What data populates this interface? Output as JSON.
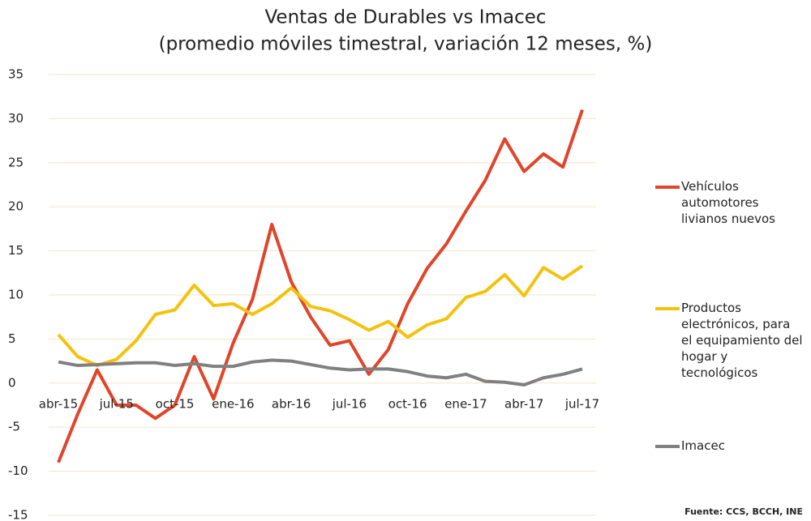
{
  "chart_data": {
    "type": "line",
    "title": "Ventas de Durables vs Imacec",
    "subtitle": "(promedio móviles timestral, variación 12 meses, %)",
    "source": "Fuente: CCS, BCCH, INE",
    "categories": [
      "abr-15",
      null,
      null,
      "jul-15",
      null,
      null,
      "oct-15",
      null,
      null,
      "ene-16",
      null,
      null,
      "abr-16",
      null,
      null,
      "jul-16",
      null,
      null,
      "oct-16",
      null,
      null,
      "ene-17",
      null,
      null,
      "abr-17",
      null,
      null,
      "jul-17"
    ],
    "series": [
      {
        "name": "Vehículos automotores livianos nuevos",
        "color": "#e0452a",
        "values": [
          -9,
          -3.5,
          1.5,
          -2.5,
          -2.5,
          -4,
          -2.5,
          3,
          -1.8,
          4.5,
          9.5,
          18,
          11.5,
          7.5,
          4.3,
          4.8,
          1,
          3.8,
          9,
          13,
          15.8,
          19.5,
          23,
          27.7,
          24,
          26,
          24.5,
          31
        ]
      },
      {
        "name": "Productos electrónicos, para el equipamiento del hogar y tecnológicos",
        "color": "#f4c20d",
        "values": [
          5.5,
          3,
          2,
          2.7,
          4.8,
          7.8,
          8.3,
          11.1,
          8.8,
          9,
          7.8,
          9,
          10.8,
          8.7,
          8.2,
          7.2,
          6,
          7,
          5.2,
          6.6,
          7.3,
          9.7,
          10.4,
          12.3,
          9.9,
          13.1,
          11.8,
          13.3
        ]
      },
      {
        "name": "Imacec",
        "color": "#808080",
        "values": [
          2.4,
          2.0,
          2.1,
          2.2,
          2.3,
          2.3,
          2.0,
          2.2,
          1.9,
          1.9,
          2.4,
          2.6,
          2.5,
          2.1,
          1.7,
          1.5,
          1.6,
          1.6,
          1.3,
          0.8,
          0.6,
          1.0,
          0.2,
          0.1,
          -0.2,
          0.6,
          1.0,
          1.6
        ]
      }
    ],
    "ylim": [
      -15,
      35
    ],
    "yticks": [
      -15,
      -10,
      -5,
      0,
      5,
      10,
      15,
      20,
      25,
      30,
      35
    ],
    "grid": true,
    "legend": "right"
  }
}
